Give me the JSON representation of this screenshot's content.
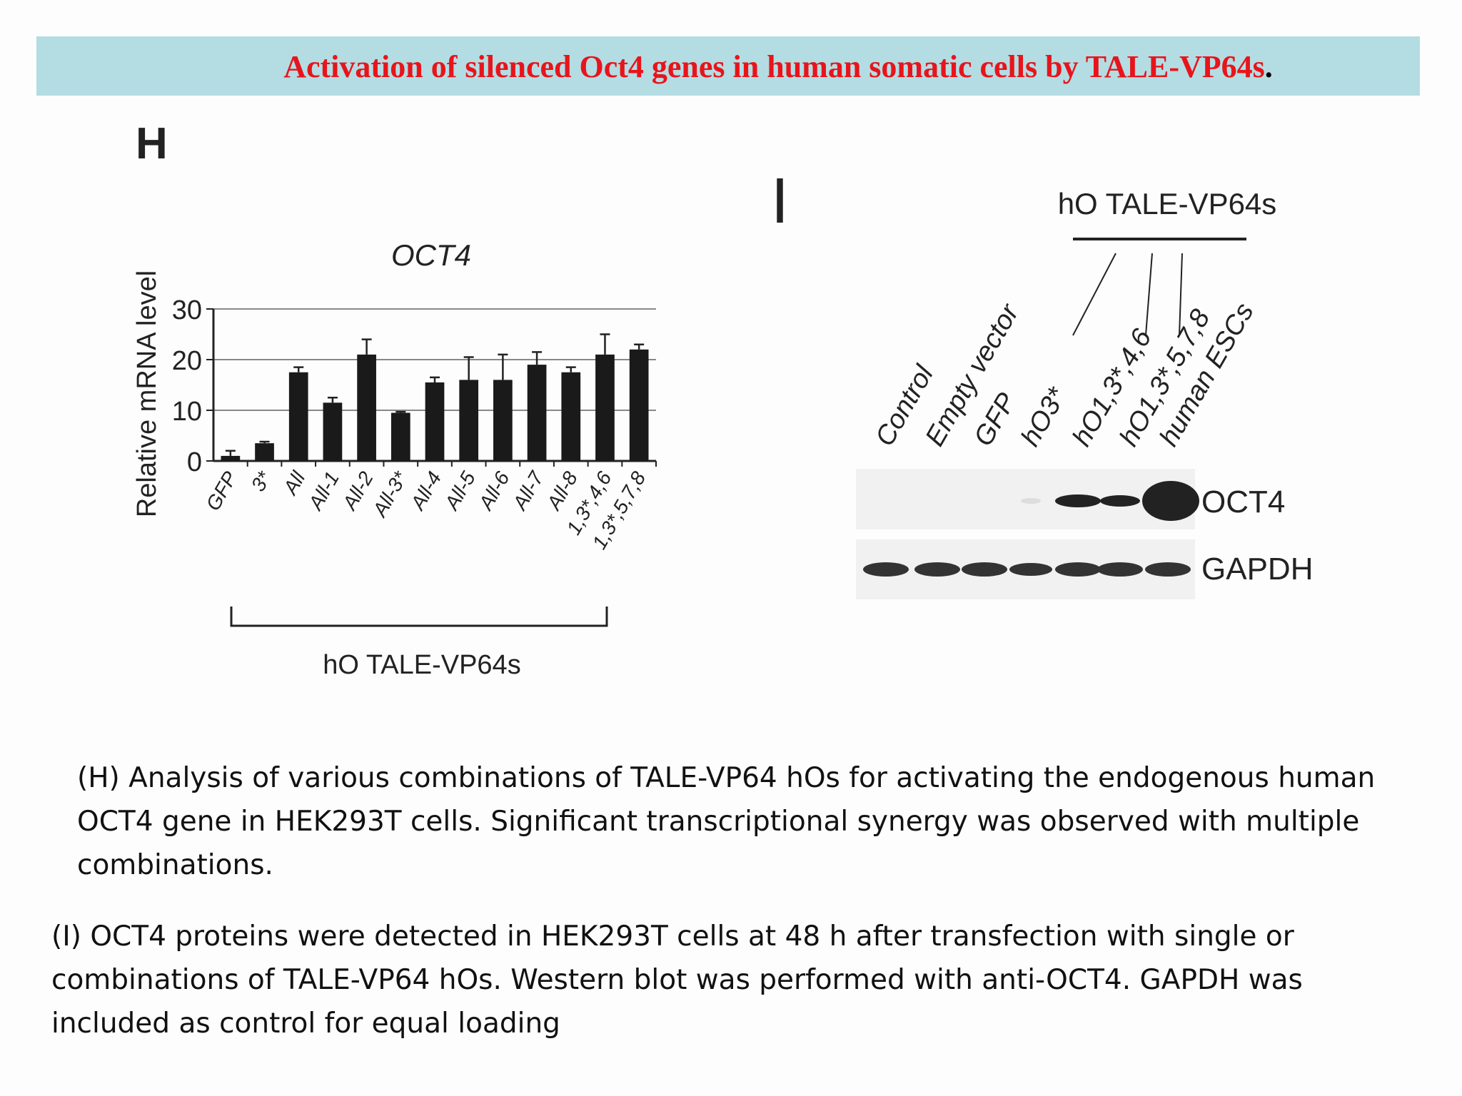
{
  "title": {
    "text": "Activation of silenced Oct4 genes in human somatic cells by TALE-VP64s",
    "end": "."
  },
  "chart_data": {
    "type": "bar",
    "panel": "H",
    "title": "OCT4",
    "y_label": "Relative mRNA level",
    "categories": [
      "GFP",
      "3*",
      "All",
      "All-1",
      "All-2",
      "All-3*",
      "All-4",
      "All-5",
      "All-6",
      "All-7",
      "All-8",
      "1,3*,4,6",
      "1,3*,5,7,8"
    ],
    "values": [
      1,
      3.5,
      17.5,
      11.5,
      21,
      9.5,
      15.5,
      16,
      16,
      19,
      17.5,
      21,
      22
    ],
    "errors": [
      1,
      0.3,
      1,
      1,
      3,
      0.2,
      1,
      4.5,
      5,
      2.5,
      1,
      4,
      1
    ],
    "color": "#1a1a1a",
    "ylim": [
      0,
      30
    ],
    "yticks": [
      0,
      10,
      20,
      30
    ],
    "grid": true,
    "group_label": "hO TALE-VP64s"
  },
  "blot": {
    "panel": "I",
    "group_label": "hO TALE-VP64s",
    "lanes": [
      "Control",
      "Empty vector",
      "GFP",
      "hO3*",
      "hO1,3*,4,6",
      "hO1,3*,5,7,8",
      "human ESCs"
    ],
    "rows": [
      "OCT4",
      "GAPDH"
    ]
  },
  "captions": [
    "(H) Analysis of various combinations of TALE-VP64 hOs for activating the endogenous human OCT4 gene in HEK293T cells. Significant transcriptional synergy was observed with multiple combinations.",
    "(I) OCT4 proteins were detected in HEK293T cells at 48 h after transfection with single or combinations of TALE-VP64 hOs. Western blot was performed with anti-OCT4. GAPDH was included as control for equal loading"
  ]
}
